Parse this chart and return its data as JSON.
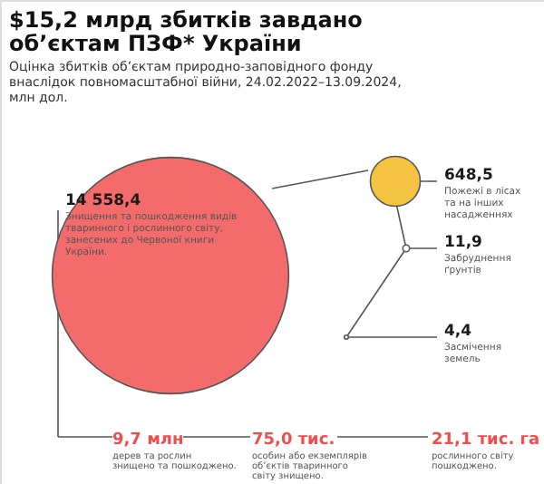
{
  "chart_data": {
    "type": "other",
    "title": "$15,2 млрд збитків завдано об’єктам ПЗФ* України",
    "subtitle": "Оцінка збитків об’єктам природно-заповідного фонду внаслідок повномасштабної війни, 24.02.2022–13.09.2024, млн дол.",
    "categories": [
      "Знищення та пошкодження видів тваринного і рослинного світу, занесених до Червоної книги України.",
      "Пожежі в лісах та на інших насадженнях",
      "Забруднення ґрунтів",
      "Засмічення земель"
    ],
    "values": [
      14558.4,
      648.5,
      11.9,
      4.4
    ],
    "value_labels": [
      "14 558,4",
      "648,5",
      "11,9",
      "4,4"
    ],
    "colors": [
      "#f46b6b",
      "#f5c342",
      "#ffffff",
      "#ffffff"
    ],
    "annotations": [
      "9,7 млн",
      "дерев та рослин знищено та пошкоджено.",
      "75,0 тис.",
      "особин або екземплярів об’єктів тваринного світу знищено.",
      "21,1 тис. га",
      "рослинного світу пошкоджено."
    ]
  }
}
